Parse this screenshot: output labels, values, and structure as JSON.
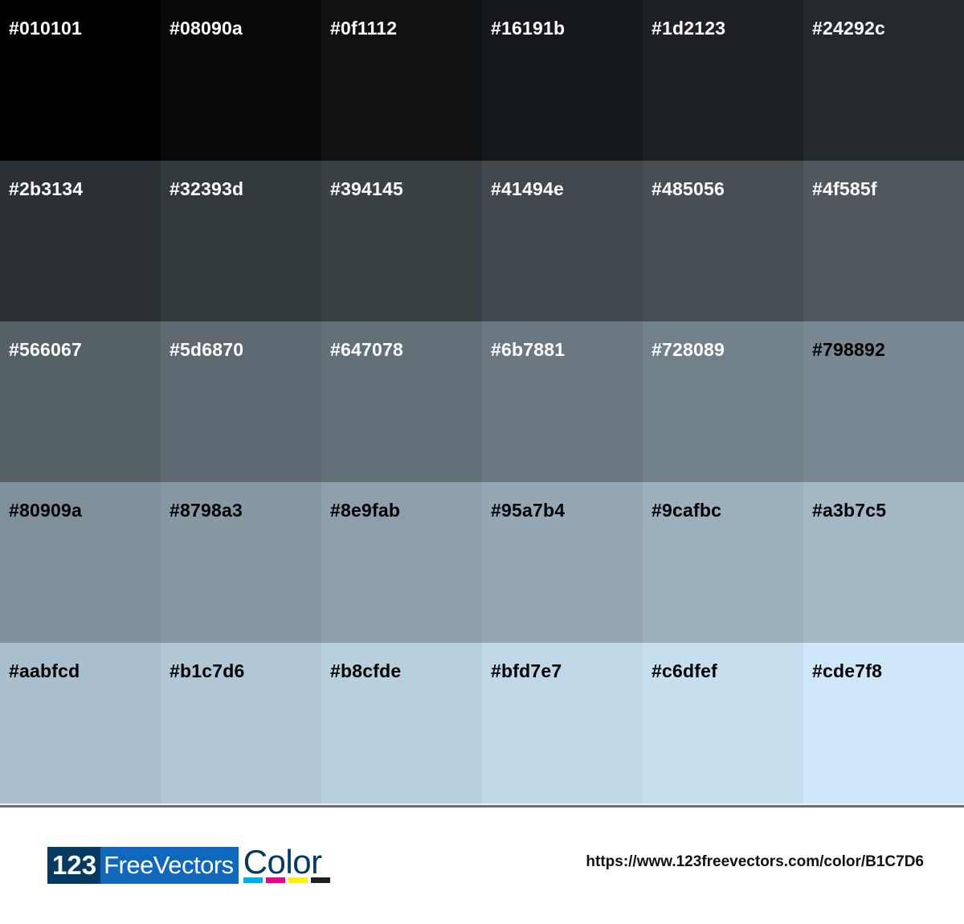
{
  "swatches": [
    {
      "hex": "#010101",
      "label_color": "#ffffff"
    },
    {
      "hex": "#08090a",
      "label_color": "#ffffff"
    },
    {
      "hex": "#0f1112",
      "label_color": "#ffffff"
    },
    {
      "hex": "#16191b",
      "label_color": "#ffffff"
    },
    {
      "hex": "#1d2123",
      "label_color": "#ffffff"
    },
    {
      "hex": "#24292c",
      "label_color": "#ffffff"
    },
    {
      "hex": "#2b3134",
      "label_color": "#ffffff"
    },
    {
      "hex": "#32393d",
      "label_color": "#ffffff"
    },
    {
      "hex": "#394145",
      "label_color": "#ffffff"
    },
    {
      "hex": "#41494e",
      "label_color": "#ffffff"
    },
    {
      "hex": "#485056",
      "label_color": "#ffffff"
    },
    {
      "hex": "#4f585f",
      "label_color": "#ffffff"
    },
    {
      "hex": "#566067",
      "label_color": "#ffffff"
    },
    {
      "hex": "#5d6870",
      "label_color": "#ffffff"
    },
    {
      "hex": "#647078",
      "label_color": "#ffffff"
    },
    {
      "hex": "#6b7881",
      "label_color": "#ffffff"
    },
    {
      "hex": "#728089",
      "label_color": "#ffffff"
    },
    {
      "hex": "#798892",
      "label_color": "#000000"
    },
    {
      "hex": "#80909a",
      "label_color": "#000000"
    },
    {
      "hex": "#8798a3",
      "label_color": "#000000"
    },
    {
      "hex": "#8e9fab",
      "label_color": "#000000"
    },
    {
      "hex": "#95a7b4",
      "label_color": "#000000"
    },
    {
      "hex": "#9cafbc",
      "label_color": "#000000"
    },
    {
      "hex": "#a3b7c5",
      "label_color": "#000000"
    },
    {
      "hex": "#aabfcd",
      "label_color": "#000000"
    },
    {
      "hex": "#b1c7d6",
      "label_color": "#000000"
    },
    {
      "hex": "#b8cfde",
      "label_color": "#000000"
    },
    {
      "hex": "#bfd7e7",
      "label_color": "#000000"
    },
    {
      "hex": "#c6dfef",
      "label_color": "#000000"
    },
    {
      "hex": "#cde7f8",
      "label_color": "#000000"
    }
  ],
  "footer": {
    "logo": {
      "part1": "123",
      "part2": "FreeVectors",
      "part3": "Color",
      "bar_colors": [
        "#00aeef",
        "#ec008c",
        "#fff200",
        "#231f20"
      ]
    },
    "url": "https://www.123freevectors.com/color/B1C7D6"
  }
}
